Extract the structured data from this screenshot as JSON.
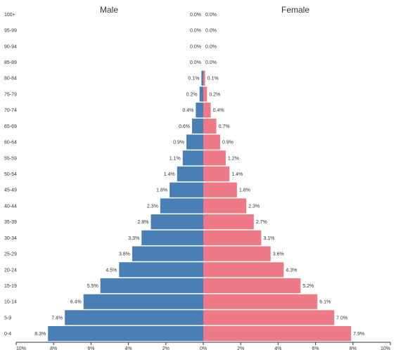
{
  "chart_data": {
    "type": "bar",
    "title_left": "Male",
    "title_right": "Female",
    "categories": [
      "0-4",
      "5-9",
      "10-14",
      "15-19",
      "20-24",
      "25-29",
      "30-34",
      "35-39",
      "40-44",
      "45-49",
      "50-54",
      "55-59",
      "60-64",
      "65-69",
      "70-74",
      "75-79",
      "80-84",
      "85-89",
      "90-94",
      "95-99",
      "100+"
    ],
    "series": [
      {
        "name": "Male",
        "values": [
          8.3,
          7.4,
          6.4,
          5.5,
          4.5,
          3.8,
          3.3,
          2.8,
          2.3,
          1.8,
          1.4,
          1.1,
          0.9,
          0.6,
          0.4,
          0.2,
          0.1,
          0.0,
          0.0,
          0.0,
          0.0
        ],
        "labels": [
          "8.3%",
          "7.4%",
          "6.4%",
          "5.5%",
          "4.5%",
          "3.8%",
          "3.3%",
          "2.8%",
          "2.3%",
          "1.8%",
          "1.4%",
          "1.1%",
          "0.9%",
          "0.6%",
          "0.4%",
          "0.2%",
          "0.1%",
          "0.0%",
          "0.0%",
          "0.0%",
          "0.0%"
        ],
        "color": "#4a7fb5"
      },
      {
        "name": "Female",
        "values": [
          7.9,
          7.0,
          6.1,
          5.2,
          4.3,
          3.6,
          3.1,
          2.7,
          2.3,
          1.8,
          1.4,
          1.2,
          0.9,
          0.7,
          0.4,
          0.2,
          0.1,
          0.0,
          0.0,
          0.0,
          0.0
        ],
        "labels": [
          "7.9%",
          "7.0%",
          "6.1%",
          "5.2%",
          "4.3%",
          "3.6%",
          "3.1%",
          "2.7%",
          "2.3%",
          "1.8%",
          "1.4%",
          "1.2%",
          "0.9%",
          "0.7%",
          "0.4%",
          "0.2%",
          "0.1%",
          "0.0%",
          "0.0%",
          "0.0%",
          "0.0%"
        ],
        "color": "#ee7a87"
      }
    ],
    "xlim": [
      -10,
      10
    ],
    "x_ticks": [
      -10,
      -8,
      -6,
      -4,
      -2,
      0,
      2,
      4,
      6,
      8,
      10
    ],
    "x_tick_labels": [
      "10%",
      "8%",
      "6%",
      "4%",
      "2%",
      "0%",
      "2%",
      "4%",
      "6%",
      "8%",
      "10%"
    ],
    "grid": false,
    "legend": "none"
  }
}
